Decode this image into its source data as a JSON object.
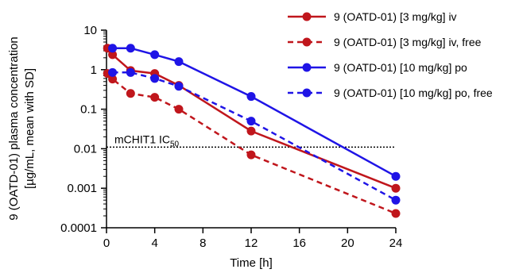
{
  "chart_data": {
    "type": "line",
    "xlabel": "Time [h]",
    "ylabel": "9 (OATD-01) plasma concentration",
    "ylabel_sub": "[µg/mL, mean with SD]",
    "xlim": [
      0,
      24
    ],
    "ylim": [
      0.0001,
      10
    ],
    "yscale": "log",
    "grid": false,
    "legend_position": "top-right",
    "x_ticks": [
      0,
      4,
      8,
      12,
      16,
      20,
      24
    ],
    "x_tick_labels": [
      "0",
      "4",
      "8",
      "12",
      "16",
      "20",
      "24"
    ],
    "y_ticks": [
      10,
      1,
      0.1,
      0.01,
      0.001,
      0.0001
    ],
    "y_tick_labels": [
      "10",
      "1",
      "0.1",
      "0.01",
      "0.001",
      "0.0001"
    ],
    "series": [
      {
        "name": "9 (OATD-01) [3 mg/kg] iv",
        "color": "#c0161c",
        "dashed": false,
        "x": [
          0.08,
          0.5,
          2,
          4,
          6,
          12,
          24
        ],
        "y": [
          3.5,
          2.4,
          0.95,
          0.8,
          0.4,
          0.028,
          0.001
        ]
      },
      {
        "name": "9 (OATD-01) [3 mg/kg] iv, free",
        "color": "#c0161c",
        "dashed": true,
        "x": [
          0.08,
          0.5,
          2,
          4,
          6,
          12,
          24
        ],
        "y": [
          0.8,
          0.58,
          0.25,
          0.2,
          0.1,
          0.007,
          0.00023
        ]
      },
      {
        "name": "9 (OATD-01) [10 mg/kg] po",
        "color": "#1f14e6",
        "dashed": false,
        "x": [
          0.5,
          2,
          4,
          6,
          12,
          24
        ],
        "y": [
          3.5,
          3.5,
          2.4,
          1.6,
          0.21,
          0.002
        ]
      },
      {
        "name": "9 (OATD-01) [10 mg/kg] po, free",
        "color": "#1f14e6",
        "dashed": true,
        "x": [
          0.5,
          2,
          4,
          6,
          12,
          24
        ],
        "y": [
          0.85,
          0.85,
          0.6,
          0.38,
          0.05,
          0.0005
        ]
      }
    ],
    "reference_line": {
      "y": 0.011,
      "label_main": "mCHIT1 IC",
      "label_sub": "50"
    }
  }
}
